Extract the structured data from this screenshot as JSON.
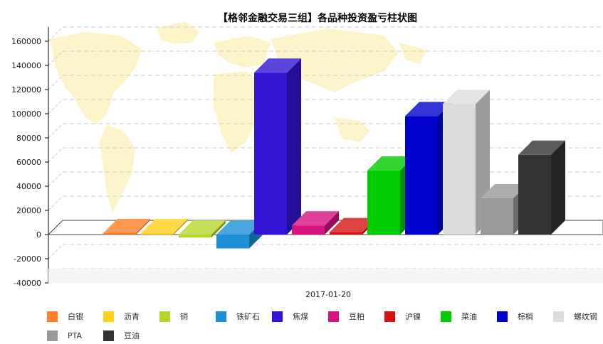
{
  "chart_data": {
    "type": "bar",
    "title": "【格邻金融交易三组】各品种投资盈亏柱状图",
    "x_category": "2017-01-20",
    "ylim": [
      -40000,
      160000
    ],
    "yticks": [
      "160000",
      "140000",
      "120000",
      "100000",
      "80000",
      "60000",
      "40000",
      "20000",
      "0",
      "-20000",
      "-40000"
    ],
    "grid": true,
    "legend_position": "bottom",
    "series": [
      {
        "name": "白银",
        "value": 1200,
        "color": "#ff7f27"
      },
      {
        "name": "沥青",
        "value": 1200,
        "color": "#ffd11a"
      },
      {
        "name": "铜",
        "value": -2500,
        "color": "#b5d62a"
      },
      {
        "name": "铁矿石",
        "value": -11500,
        "color": "#1e8fd6"
      },
      {
        "name": "焦煤",
        "value": 134000,
        "color": "#3415d6"
      },
      {
        "name": "豆粕",
        "value": 7500,
        "color": "#d6127d"
      },
      {
        "name": "沪镍",
        "value": 2000,
        "color": "#d41414"
      },
      {
        "name": "菜油",
        "value": 53000,
        "color": "#00cc00"
      },
      {
        "name": "棕榈",
        "value": 98000,
        "color": "#0000cc"
      },
      {
        "name": "螺纹钢",
        "value": 108000,
        "color": "#dddddd"
      },
      {
        "name": "PTA",
        "value": 30000,
        "color": "#999999"
      },
      {
        "name": "豆油",
        "value": 66000,
        "color": "#333333"
      }
    ]
  }
}
